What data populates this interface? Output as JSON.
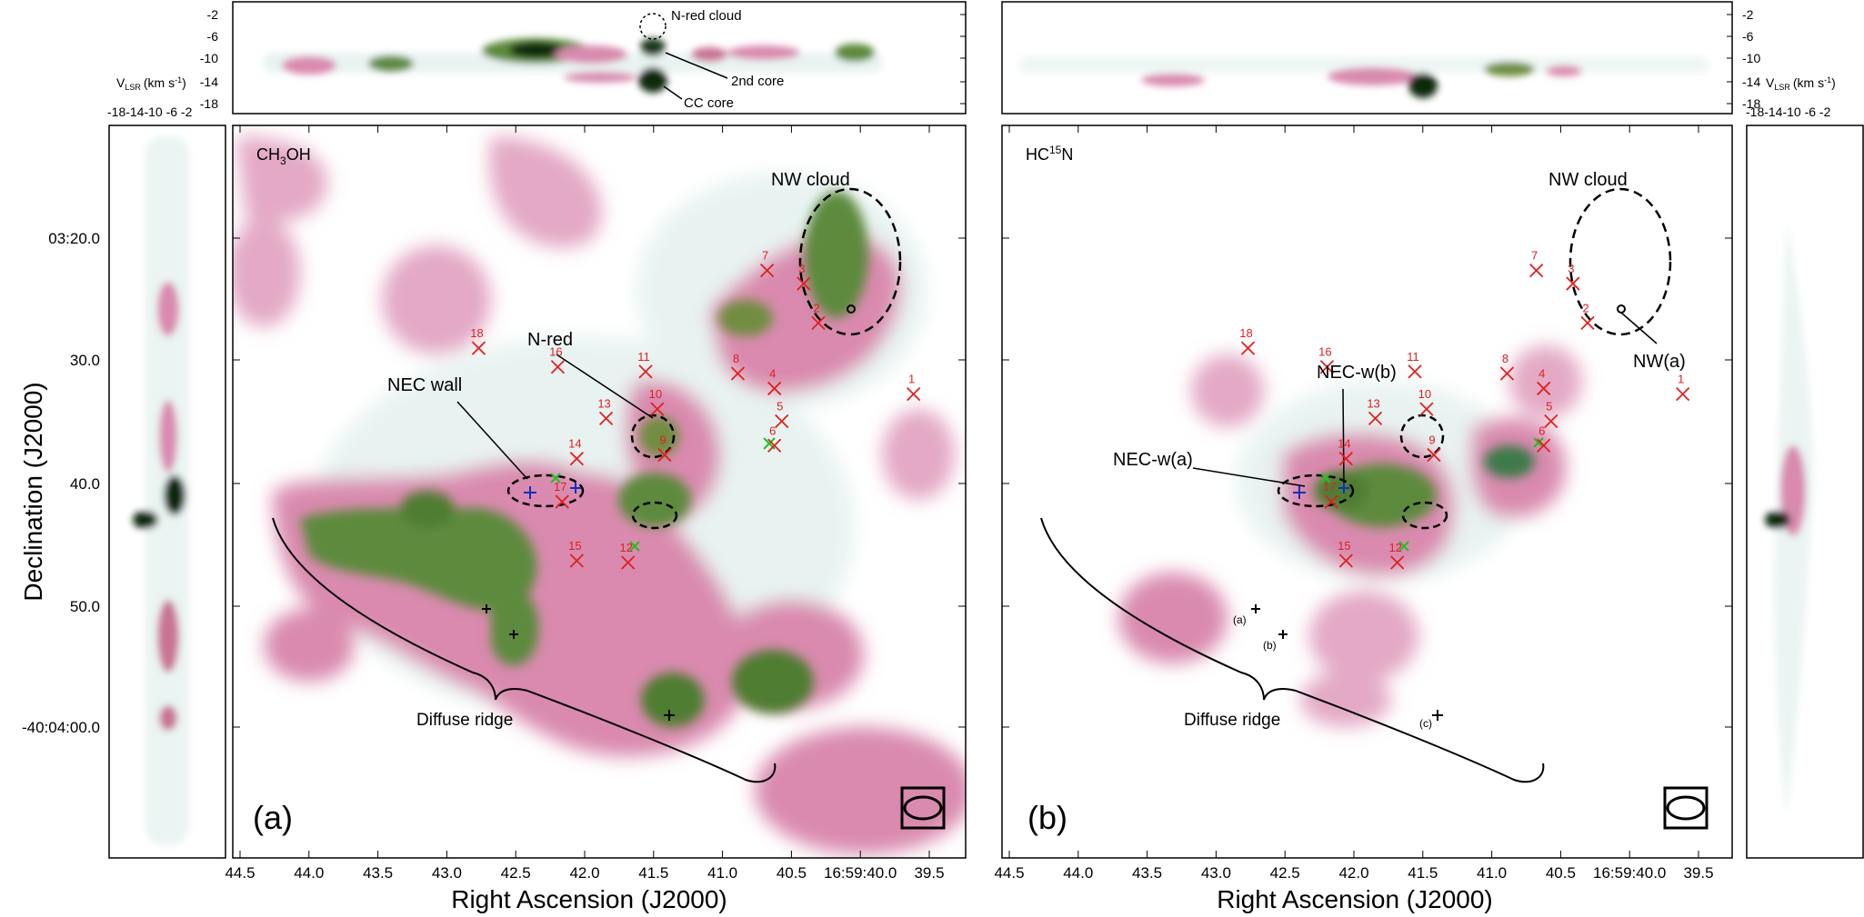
{
  "chart_data": {
    "type": "heatmap",
    "panels": [
      {
        "id": "a",
        "tag": "(a)",
        "molecule": "CH3OH",
        "molecule_main": "CH",
        "molecule_sub": "3",
        "molecule_tail": "OH",
        "region_labels": {
          "nw_cloud": "NW cloud",
          "n_red": "N-red",
          "nec_wall": "NEC wall",
          "diffuse_ridge": "Diffuse ridge",
          "n_red_cloud": "N-red cloud",
          "core_2nd": "2nd core",
          "cc_core": "CC core"
        }
      },
      {
        "id": "b",
        "tag": "(b)",
        "molecule": "HC15N",
        "molecule_main": "HC",
        "molecule_sup": "15",
        "molecule_tail": "N",
        "region_labels": {
          "nw_cloud": "NW cloud",
          "nw_a": "NW(a)",
          "nec_w_b": "NEC-w(b)",
          "nec_w_a": "NEC-w(a)",
          "diffuse_ridge": "Diffuse ridge",
          "label_a": "(a)",
          "label_b": "(b)",
          "label_c": "(c)"
        }
      }
    ],
    "xlabel": "Right Ascension (J2000)",
    "ylabel": "Declination (J2000)",
    "x_ticks": [
      "44.5",
      "44.0",
      "43.5",
      "43.0",
      "42.5",
      "42.0",
      "41.5",
      "41.0",
      "40.5",
      "16:59:40.0",
      "39.5"
    ],
    "y_ticks": [
      "03:20.0",
      "30.0",
      "40.0",
      "50.0",
      "-40:04:00.0"
    ],
    "vlsr_label_main": "V",
    "vlsr_label_sub": "LSR",
    "vlsr_label_tail": "(km s",
    "vlsr_label_sup": "-1",
    "vlsr_label_close": ")",
    "vlsr_ticks": [
      "-2",
      "-6",
      "-10",
      "-14",
      "-18"
    ],
    "vlsr_ticks_horizontal": "-18-14-10 -6 -2",
    "positions": [
      {
        "id": "1",
        "ra": 39.85,
        "dec": 41.2
      },
      {
        "id": "2",
        "ra": 40.5,
        "dec": 33.6
      },
      {
        "id": "3",
        "ra": 40.6,
        "dec": 29.4
      },
      {
        "id": "4",
        "ra": 40.8,
        "dec": 40.6
      },
      {
        "id": "5",
        "ra": 40.75,
        "dec": 44.1
      },
      {
        "id": "6",
        "ra": 40.8,
        "dec": 46.7
      },
      {
        "id": "7",
        "ra": 40.85,
        "dec": 28.0
      },
      {
        "id": "8",
        "ra": 41.05,
        "dec": 39.0
      },
      {
        "id": "9",
        "ra": 41.55,
        "dec": 47.7
      },
      {
        "id": "10",
        "ra": 41.6,
        "dec": 42.8
      },
      {
        "id": "11",
        "ra": 41.68,
        "dec": 38.8
      },
      {
        "id": "12",
        "ra": 41.8,
        "dec": 59.2
      },
      {
        "id": "13",
        "ra": 41.95,
        "dec": 43.8
      },
      {
        "id": "14",
        "ra": 42.15,
        "dec": 48.1
      },
      {
        "id": "15",
        "ra": 42.15,
        "dec": 59.0
      },
      {
        "id": "16",
        "ra": 42.28,
        "dec": 38.3
      },
      {
        "id": "17",
        "ra": 42.25,
        "dec": 52.7
      },
      {
        "id": "18",
        "ra": 42.82,
        "dec": 36.3
      }
    ],
    "colormap": [
      "#ffffff",
      "#e6f2f0",
      "#cfe3e0",
      "#e3a9c5",
      "#c97394",
      "#8a8a55",
      "#4f8a35",
      "#2c6b28",
      "#0f2a10"
    ]
  }
}
